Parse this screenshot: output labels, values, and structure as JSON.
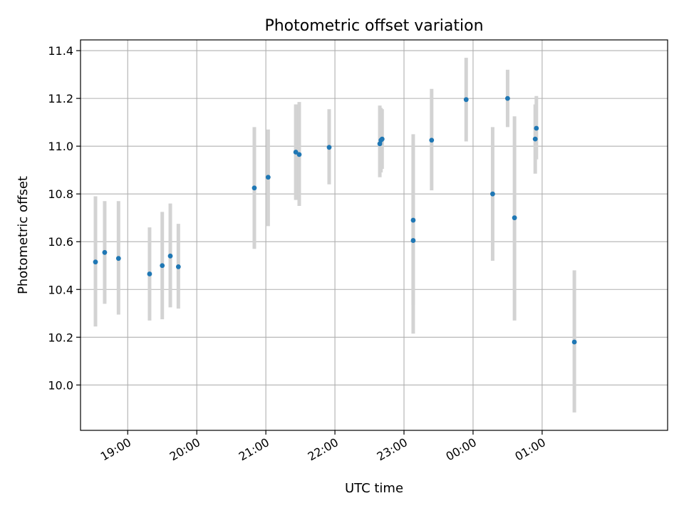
{
  "chart_data": {
    "type": "scatter",
    "title": "Photometric offset variation",
    "xlabel": "UTC time",
    "ylabel": "Photometric offset",
    "x_axis_type": "time",
    "xlim": [
      "18:19",
      "02:49"
    ],
    "ylim": [
      9.81,
      11.445
    ],
    "grid": true,
    "x_ticks": [
      "19:00",
      "20:00",
      "21:00",
      "22:00",
      "23:00",
      "00:00",
      "01:00"
    ],
    "y_ticks": [
      "10.0",
      "10.2",
      "10.4",
      "10.6",
      "10.8",
      "11.0",
      "11.2",
      "11.4"
    ],
    "marker_color": "#1f77b4",
    "error_bar_color": "#d3d3d3",
    "points": [
      {
        "x": "18:32",
        "y": 10.515,
        "y_low": 10.245,
        "y_high": 10.79
      },
      {
        "x": "18:40",
        "y": 10.555,
        "y_low": 10.34,
        "y_high": 10.77
      },
      {
        "x": "18:52",
        "y": 10.53,
        "y_low": 10.295,
        "y_high": 10.77
      },
      {
        "x": "19:19",
        "y": 10.465,
        "y_low": 10.27,
        "y_high": 10.66
      },
      {
        "x": "19:30",
        "y": 10.5,
        "y_low": 10.275,
        "y_high": 10.725
      },
      {
        "x": "19:37",
        "y": 10.54,
        "y_low": 10.325,
        "y_high": 10.76
      },
      {
        "x": "19:44",
        "y": 10.495,
        "y_low": 10.32,
        "y_high": 10.675
      },
      {
        "x": "20:50",
        "y": 10.825,
        "y_low": 10.57,
        "y_high": 11.08
      },
      {
        "x": "21:02",
        "y": 10.87,
        "y_low": 10.665,
        "y_high": 11.07
      },
      {
        "x": "21:26",
        "y": 10.975,
        "y_low": 10.775,
        "y_high": 11.175
      },
      {
        "x": "21:29",
        "y": 10.965,
        "y_low": 10.75,
        "y_high": 11.185
      },
      {
        "x": "21:55",
        "y": 10.995,
        "y_low": 10.84,
        "y_high": 11.155
      },
      {
        "x": "22:39",
        "y": 11.01,
        "y_low": 10.87,
        "y_high": 11.17
      },
      {
        "x": "22:40",
        "y": 11.025,
        "y_low": 10.89,
        "y_high": 11.16
      },
      {
        "x": "22:41",
        "y": 11.03,
        "y_low": 10.905,
        "y_high": 11.155
      },
      {
        "x": "23:08",
        "y": 10.69,
        "y_low": 10.335,
        "y_high": 11.05
      },
      {
        "x": "23:08",
        "y": 10.605,
        "y_low": 10.215,
        "y_high": 11.0
      },
      {
        "x": "23:24",
        "y": 11.025,
        "y_low": 10.815,
        "y_high": 11.24
      },
      {
        "x": "23:54",
        "y": 11.195,
        "y_low": 11.02,
        "y_high": 11.37
      },
      {
        "x": "00:17",
        "y": 10.8,
        "y_low": 10.52,
        "y_high": 11.08
      },
      {
        "x": "00:30",
        "y": 11.2,
        "y_low": 11.08,
        "y_high": 11.32
      },
      {
        "x": "00:36",
        "y": 10.7,
        "y_low": 10.27,
        "y_high": 11.125
      },
      {
        "x": "00:54",
        "y": 11.03,
        "y_low": 10.885,
        "y_high": 11.175
      },
      {
        "x": "00:55",
        "y": 11.075,
        "y_low": 10.945,
        "y_high": 11.21
      },
      {
        "x": "01:28",
        "y": 10.18,
        "y_low": 9.885,
        "y_high": 10.48
      }
    ]
  }
}
